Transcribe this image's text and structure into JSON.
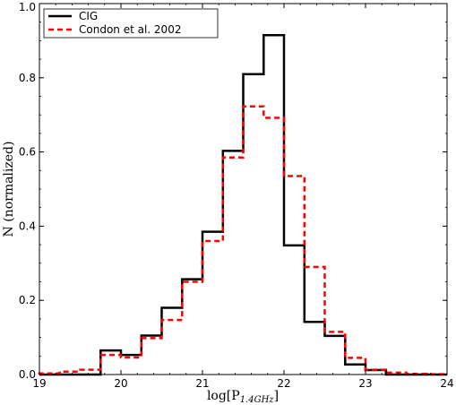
{
  "chart_data": {
    "type": "line",
    "title": "",
    "xlabel": "log[P1.4GHz]",
    "xlabel_main": "log[P",
    "xlabel_sub": "1.4GHz",
    "xlabel_close": "]",
    "ylabel": "N (normalized)",
    "xlim": [
      19,
      24
    ],
    "ylim": [
      0,
      1.0
    ],
    "x_ticks": [
      19,
      20,
      21,
      22,
      23,
      24
    ],
    "x_tick_labels": [
      "19",
      "20",
      "21",
      "22",
      "23",
      "24"
    ],
    "y_ticks": [
      0.0,
      0.2,
      0.4,
      0.6,
      0.8,
      1.0
    ],
    "y_tick_labels": [
      "0.0",
      "0.2",
      "0.4",
      "0.6",
      "0.8",
      "1.0"
    ],
    "grid": false,
    "legend_position": "top-left",
    "bin_edges": [
      19.0,
      19.25,
      19.5,
      19.75,
      20.0,
      20.25,
      20.5,
      20.75,
      21.0,
      21.25,
      21.5,
      21.75,
      22.0,
      22.25,
      22.5,
      22.75,
      23.0,
      23.25,
      23.5,
      23.75,
      24.0
    ],
    "series": [
      {
        "name": "CIG",
        "color": "#000000",
        "style": "solid",
        "values": [
          0,
          0,
          0,
          0.065,
          0.053,
          0.105,
          0.18,
          0.257,
          0.385,
          0.603,
          0.81,
          0.915,
          0.348,
          0.142,
          0.104,
          0.027,
          0.012,
          0,
          0,
          0
        ]
      },
      {
        "name": "Condon et al. 2002",
        "color": "#ff0000",
        "style": "dashed",
        "values": [
          0.003,
          0.008,
          0.013,
          0.053,
          0.046,
          0.098,
          0.147,
          0.25,
          0.36,
          0.585,
          0.723,
          0.692,
          0.535,
          0.29,
          0.115,
          0.045,
          0.013,
          0.005,
          0.002,
          0.001
        ]
      }
    ]
  }
}
